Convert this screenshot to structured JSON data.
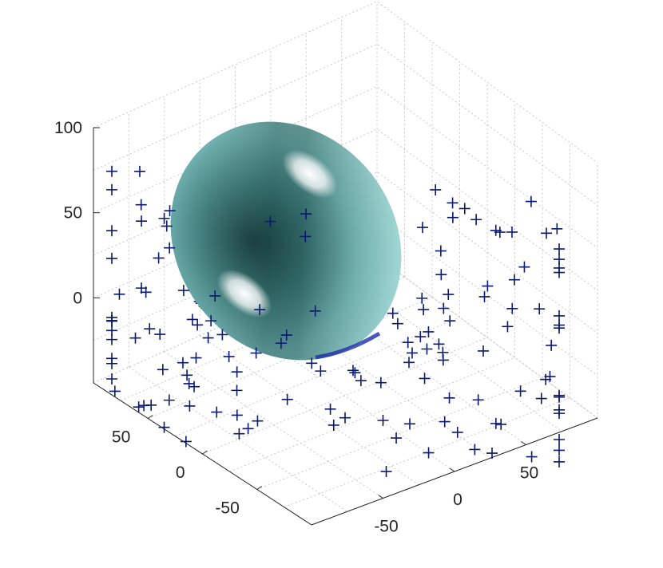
{
  "chart_data": {
    "type": "scatter",
    "subtype": "3d-scatter-with-ellipsoid-surface",
    "title": "",
    "xlabel": "",
    "ylabel": "",
    "zlabel": "",
    "grid": true,
    "box": true,
    "view": "3d-default",
    "axes": {
      "x": {
        "ticks": [
          -50,
          0,
          50
        ],
        "tick_labels": [
          "-50",
          "0",
          "50"
        ],
        "range": [
          -100,
          100
        ]
      },
      "y": {
        "ticks": [
          -50,
          0,
          50
        ],
        "tick_labels": [
          "-50",
          "0",
          "50"
        ],
        "range": [
          -100,
          100
        ]
      },
      "z": {
        "ticks": [
          0,
          50,
          100
        ],
        "tick_labels": [
          "0",
          "50",
          "100"
        ],
        "range": [
          -50,
          100
        ]
      }
    },
    "ellipsoid": {
      "color": "#7fc4c2",
      "edge_color": "none",
      "lighting": "phong",
      "description": "fitted ellipsoid surface, tilted, spanning roughly z -30..100"
    },
    "series": [
      {
        "marker": "+",
        "marker_color": "#000080",
        "points_screen_sampled": 180
      }
    ],
    "colors": {
      "marker": "#0a1a6e",
      "grid": "#c8c8c8",
      "axis": "#262626",
      "surface": "#7fc4c2"
    }
  }
}
